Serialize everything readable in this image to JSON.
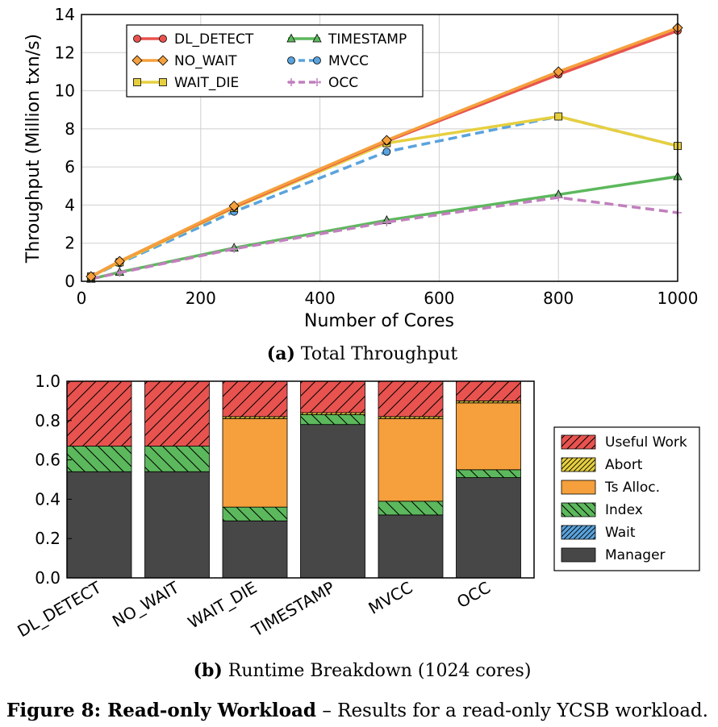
{
  "colors": {
    "DL_DETECT": "#e8534f",
    "NO_WAIT": "#f5a03c",
    "WAIT_DIE": "#e6cf3f",
    "TIMESTAMP": "#5cb85c",
    "MVCC": "#5aa3dd",
    "OCC": "#c17fbd",
    "useful": "#e8534f",
    "abort": "#e6cf3f",
    "tsalloc": "#f5a03c",
    "index": "#5cb85c",
    "wait": "#5aa3dd",
    "manager": "#474747"
  },
  "chart_data": [
    {
      "type": "line",
      "caption_bold": "(a)",
      "caption_text": "Total Throughput",
      "xlabel": "Number of Cores",
      "ylabel": "Throughput (Million txn/s)",
      "xlim": [
        0,
        1000
      ],
      "ylim": [
        0,
        14
      ],
      "xticks": [
        "0",
        "200",
        "400",
        "600",
        "800",
        "1000"
      ],
      "yticks": [
        "0",
        "2",
        "4",
        "6",
        "8",
        "10",
        "12",
        "14"
      ],
      "grid": true,
      "legend": "top-left",
      "x": [
        16,
        64,
        256,
        512,
        800,
        1000
      ],
      "series": [
        {
          "name": "DL_DETECT",
          "values": [
            0.25,
            1.05,
            3.9,
            7.35,
            10.85,
            13.15
          ],
          "marker": "circle",
          "dash": "solid"
        },
        {
          "name": "NO_WAIT",
          "values": [
            0.25,
            1.05,
            3.95,
            7.4,
            11.0,
            13.3
          ],
          "marker": "diamond",
          "dash": "solid"
        },
        {
          "name": "WAIT_DIE",
          "values": [
            0.25,
            1.0,
            3.85,
            7.25,
            8.65,
            7.1
          ],
          "marker": "square",
          "dash": "solid"
        },
        {
          "name": "TIMESTAMP",
          "values": [
            0.12,
            0.48,
            1.75,
            3.2,
            4.55,
            5.5
          ],
          "marker": "triangle",
          "dash": "solid"
        },
        {
          "name": "MVCC",
          "values": [
            0.25,
            0.95,
            3.65,
            6.8,
            8.65,
            7.1
          ],
          "marker": "circle",
          "dash": "dashed"
        },
        {
          "name": "OCC",
          "values": [
            0.12,
            0.45,
            1.7,
            3.1,
            4.4,
            3.6
          ],
          "marker": "plus",
          "dash": "dashed"
        }
      ]
    },
    {
      "type": "bar",
      "stacked": true,
      "caption_bold": "(b)",
      "caption_text": "Runtime Breakdown (1024 cores)",
      "ylim": [
        0,
        1
      ],
      "yticks": [
        "0.0",
        "0.2",
        "0.4",
        "0.6",
        "0.8",
        "1.0"
      ],
      "legend": "right",
      "categories": [
        "DL_DETECT",
        "NO_WAIT",
        "WAIT_DIE",
        "TIMESTAMP",
        "MVCC",
        "OCC"
      ],
      "series": [
        {
          "name": "Manager",
          "key": "manager",
          "values": [
            0.54,
            0.54,
            0.29,
            0.78,
            0.32,
            0.51
          ]
        },
        {
          "name": "Wait",
          "key": "wait",
          "values": [
            0.0,
            0.0,
            0.0,
            0.0,
            0.0,
            0.0
          ]
        },
        {
          "name": "Index",
          "key": "index",
          "values": [
            0.13,
            0.13,
            0.07,
            0.05,
            0.07,
            0.04
          ]
        },
        {
          "name": "Ts Alloc.",
          "key": "tsalloc",
          "values": [
            0.0,
            0.0,
            0.45,
            0.0,
            0.42,
            0.34
          ]
        },
        {
          "name": "Abort",
          "key": "abort",
          "values": [
            0.0,
            0.0,
            0.01,
            0.01,
            0.01,
            0.01
          ]
        },
        {
          "name": "Useful Work",
          "key": "useful",
          "values": [
            0.33,
            0.33,
            0.18,
            0.16,
            0.18,
            0.1
          ]
        }
      ]
    }
  ],
  "figure_caption": {
    "bold": "Figure 8: Read-only Workload",
    "text": "– Results for a read-only YCSB workload."
  }
}
